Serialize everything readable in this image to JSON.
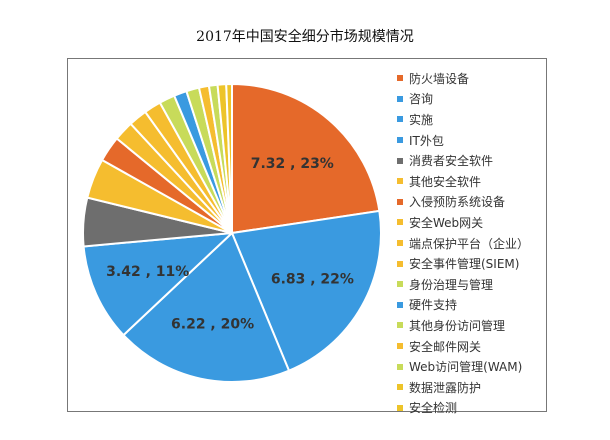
{
  "chart_data": {
    "type": "pie",
    "title": "2017年中国安全细分市场规模情况",
    "legend_position": "right",
    "slices": [
      {
        "label": "防火墙设备",
        "value": 7.32,
        "percent": 23,
        "data_label": "7.32 , 23%",
        "color": "#E5692A"
      },
      {
        "label": "咨询",
        "value": 6.83,
        "percent": 22,
        "data_label": "6.83 , 22%",
        "color": "#3A9AE0"
      },
      {
        "label": "实施",
        "value": 6.22,
        "percent": 20,
        "data_label": "6.22 , 20%",
        "color": "#3A9AE0"
      },
      {
        "label": "IT外包",
        "value": 3.42,
        "percent": 11,
        "data_label": "3.42 , 11%",
        "color": "#3A9AE0"
      },
      {
        "label": "消费者安全软件",
        "value": 1.7,
        "color": "#6E6E6E"
      },
      {
        "label": "其他安全软件",
        "value": 1.4,
        "color": "#F5BD2F"
      },
      {
        "label": "入侵预防系统设备",
        "value": 0.9,
        "color": "#E5692A"
      },
      {
        "label": "安全Web网关",
        "value": 0.7,
        "color": "#F5BD2F"
      },
      {
        "label": "端点保护平台（企业）",
        "value": 0.65,
        "color": "#F5BD2F"
      },
      {
        "label": "安全事件管理(SIEM)",
        "value": 0.6,
        "color": "#F5BD2F"
      },
      {
        "label": "身份治理与管理",
        "value": 0.55,
        "color": "#C8DB5A"
      },
      {
        "label": "硬件支持",
        "value": 0.45,
        "color": "#3A9AE0"
      },
      {
        "label": "其他身份访问管理",
        "value": 0.45,
        "color": "#C8DB5A"
      },
      {
        "label": "安全邮件网关",
        "value": 0.35,
        "color": "#F5BD2F"
      },
      {
        "label": "Web访问管理(WAM)",
        "value": 0.3,
        "color": "#C8DB5A"
      },
      {
        "label": "数据泄露防护",
        "value": 0.3,
        "color": "#EDC42A"
      },
      {
        "label": "安全检测",
        "value": 0.2,
        "color": "#EDC42A"
      }
    ]
  }
}
